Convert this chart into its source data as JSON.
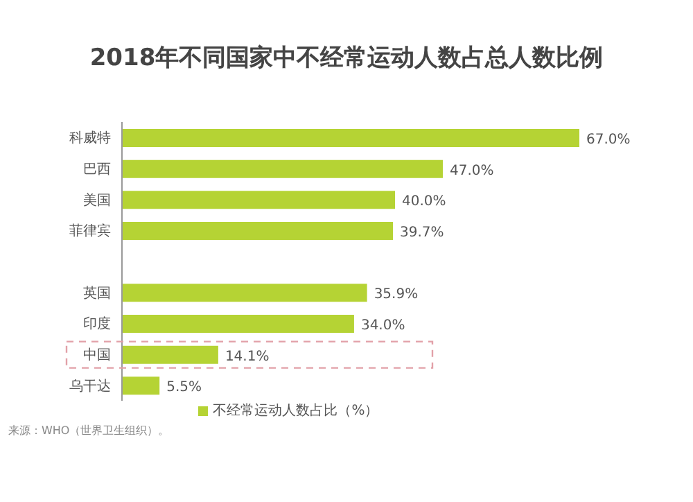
{
  "chart_data": {
    "type": "bar",
    "orientation": "horizontal",
    "title": "2018年不同国家中不经常运动人数占总人数比例",
    "categories": [
      "科威特",
      "巴西",
      "美国",
      "菲律宾",
      null,
      "英国",
      "印度",
      "中国",
      "乌干达"
    ],
    "series": [
      {
        "name": "不经常运动人数占比（%）",
        "color": "#b5d334",
        "values": [
          67.0,
          47.0,
          40.0,
          39.7,
          null,
          35.9,
          34.0,
          14.1,
          5.5
        ],
        "value_labels": [
          "67.0%",
          "47.0%",
          "40.0%",
          "39.7%",
          null,
          "35.9%",
          "34.0%",
          "14.1%",
          "5.5%"
        ]
      }
    ],
    "legend": "bottom",
    "annotations": [
      "来源：WHO（世界卫生组织）。"
    ]
  }
}
